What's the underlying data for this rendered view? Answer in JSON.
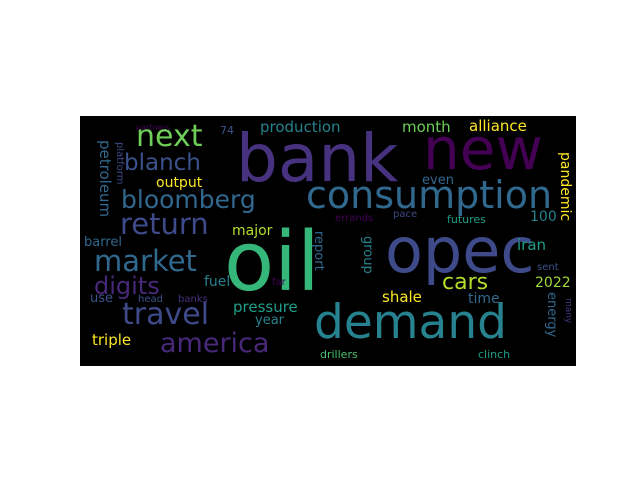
{
  "words": [
    {
      "text": "oil",
      "color": "#35b779"
    },
    {
      "text": "bank",
      "color": "#46327e"
    },
    {
      "text": "new",
      "color": "#440154"
    },
    {
      "text": "opec",
      "color": "#3e4a89"
    },
    {
      "text": "demand",
      "color": "#26828e"
    },
    {
      "text": "consumption",
      "color": "#31688e"
    },
    {
      "text": "bloomberg",
      "color": "#31688e"
    },
    {
      "text": "return",
      "color": "#3e4a89"
    },
    {
      "text": "next",
      "color": "#6ece58"
    },
    {
      "text": "blanch",
      "color": "#3b528b"
    },
    {
      "text": "market",
      "color": "#31688e"
    },
    {
      "text": "travel",
      "color": "#3e4a89"
    },
    {
      "text": "america",
      "color": "#482878"
    },
    {
      "text": "digits",
      "color": "#482878"
    },
    {
      "text": "cars",
      "color": "#b5de2b"
    },
    {
      "text": "production",
      "color": "#26828e"
    },
    {
      "text": "alliance",
      "color": "#fde725"
    },
    {
      "text": "month",
      "color": "#6ece58"
    },
    {
      "text": "even",
      "color": "#31688e"
    },
    {
      "text": "output",
      "color": "#fde725"
    },
    {
      "text": "petroleum",
      "color": "#31688e"
    },
    {
      "text": "platform",
      "color": "#3e4a89"
    },
    {
      "text": "partners",
      "color": "#440154"
    },
    {
      "text": "74",
      "color": "#3b528b"
    },
    {
      "text": "pandemic",
      "color": "#fde725"
    },
    {
      "text": "100",
      "color": "#26828e"
    },
    {
      "text": "futures",
      "color": "#1f9e89"
    },
    {
      "text": "pace",
      "color": "#3e4a89"
    },
    {
      "text": "errands",
      "color": "#440154"
    },
    {
      "text": "iran",
      "color": "#1f9e89"
    },
    {
      "text": "report",
      "color": "#31688e"
    },
    {
      "text": "group",
      "color": "#26828e"
    },
    {
      "text": "major",
      "color": "#b5de2b"
    },
    {
      "text": "barrel",
      "color": "#31688e"
    },
    {
      "text": "fuel",
      "color": "#26828e"
    },
    {
      "text": "use",
      "color": "#3b528b"
    },
    {
      "text": "far",
      "color": "#440154"
    },
    {
      "text": "head",
      "color": "#3b528b"
    },
    {
      "text": "banks",
      "color": "#46327e"
    },
    {
      "text": "pressure",
      "color": "#1f9e89"
    },
    {
      "text": "year",
      "color": "#26828e"
    },
    {
      "text": "shale",
      "color": "#fde725"
    },
    {
      "text": "time",
      "color": "#31688e"
    },
    {
      "text": "2022",
      "color": "#9fda3a"
    },
    {
      "text": "energy",
      "color": "#31688e"
    },
    {
      "text": "sent",
      "color": "#3b528b"
    },
    {
      "text": "many",
      "color": "#46327e"
    },
    {
      "text": "triple",
      "color": "#fde725"
    },
    {
      "text": "drillers",
      "color": "#4ac16d"
    },
    {
      "text": "clinch",
      "color": "#1f9e89"
    }
  ]
}
